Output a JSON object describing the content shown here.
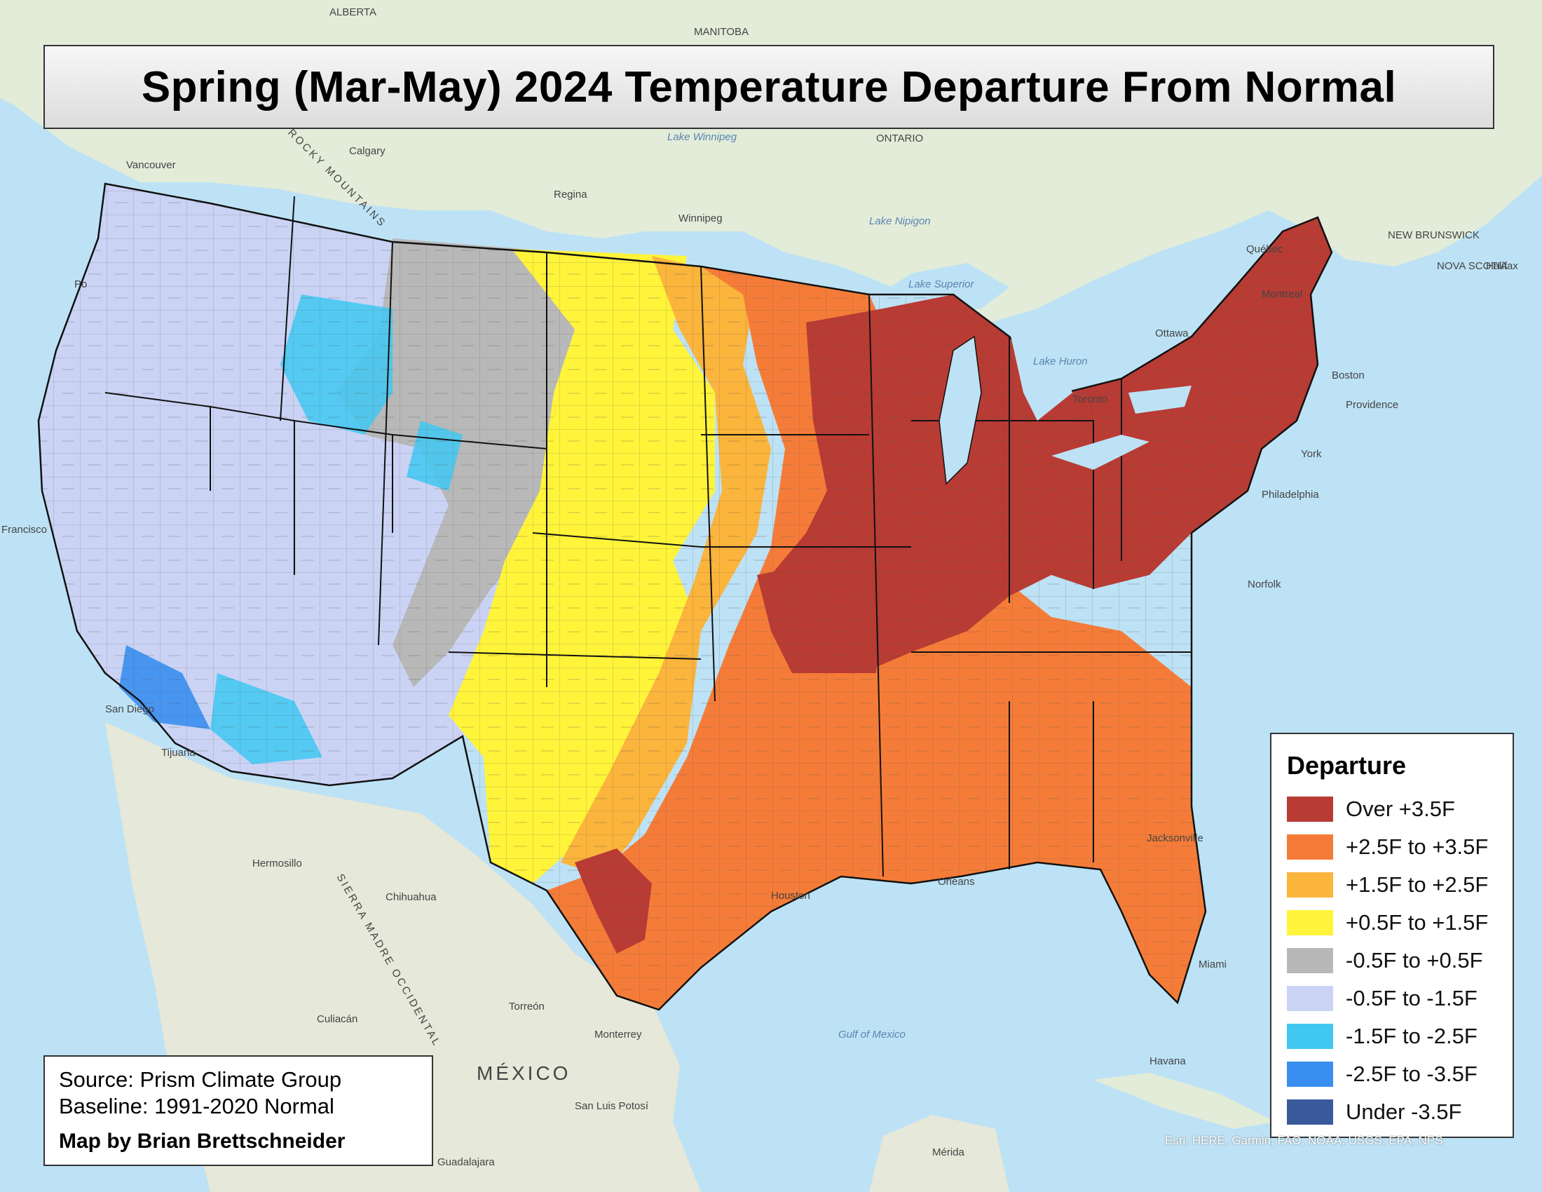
{
  "title": "Spring (Mar-May) 2024 Temperature Departure From Normal",
  "legend": {
    "title": "Departure",
    "items": [
      {
        "label": "Over +3.5F",
        "color": "#b83b34"
      },
      {
        "label": "+2.5F to +3.5F",
        "color": "#f57c38"
      },
      {
        "label": "+1.5F to +2.5F",
        "color": "#fbb43c"
      },
      {
        "label": "+0.5F to +1.5F",
        "color": "#fff43a"
      },
      {
        "label": "-0.5F to +0.5F",
        "color": "#b8b8b8"
      },
      {
        "label": "-0.5F to -1.5F",
        "color": "#cbd3f5"
      },
      {
        "label": "-1.5F to -2.5F",
        "color": "#40c8f2"
      },
      {
        "label": "-2.5F to -3.5F",
        "color": "#3a8ef0"
      },
      {
        "label": "Under -3.5F",
        "color": "#3a5a9c"
      }
    ]
  },
  "source": {
    "line1": "Source: Prism Climate Group",
    "line2": "Baseline: 1991-2020 Normal",
    "author": "Map by Brian Brettschneider"
  },
  "attribution": "Esri, HERE, Garmin, FAO, NOAA, USGS, EPA, NPS",
  "places": {
    "alberta": "ALBERTA",
    "manitoba": "MANITOBA",
    "ontario": "ONTARIO",
    "calgary": "Calgary",
    "regina": "Regina",
    "winnipeg": "Winnipeg",
    "vancouver": "Vancouver",
    "quebec": "Québec",
    "montreal": "Montreal",
    "ottawa": "Ottawa",
    "toronto": "Toronto",
    "halifax": "Halifax",
    "newbrunswick": "NEW BRUNSWICK",
    "novascotia": "NOVA SCOTIA",
    "sandiego": "San Diego",
    "tijuana": "Tijuana",
    "hermosillo": "Hermosillo",
    "chihuahua": "Chihuahua",
    "torreon": "Torreón",
    "monterrey": "Monterrey",
    "culiacan": "Culiacán",
    "mexico": "MÉXICO",
    "sanluis": "San Luis Potosí",
    "guadalajara": "Guadalajara",
    "merida": "Mérida",
    "havana": "Havana",
    "jacksonville": "Jacksonville",
    "miami": "Miami",
    "orleans": "Orleans",
    "houston": "Houston",
    "norfolk": "Norfolk",
    "philadelphia": "Philadelphia",
    "newyork": "York",
    "boston": "Boston",
    "providence": "Providence",
    "sanfrancisco": "Francisco",
    "portland": "Po",
    "gulf": "Gulf of Mexico",
    "lakesuperior": "Lake Superior",
    "lakehuron": "Lake Huron",
    "lakewinnipeg": "Lake Winnipeg",
    "lakenipigon": "Lake Nipigon",
    "sierra": "SIERRA MADRE OCCIDENTAL",
    "rocky": "ROCKY MOUNTAINS"
  }
}
